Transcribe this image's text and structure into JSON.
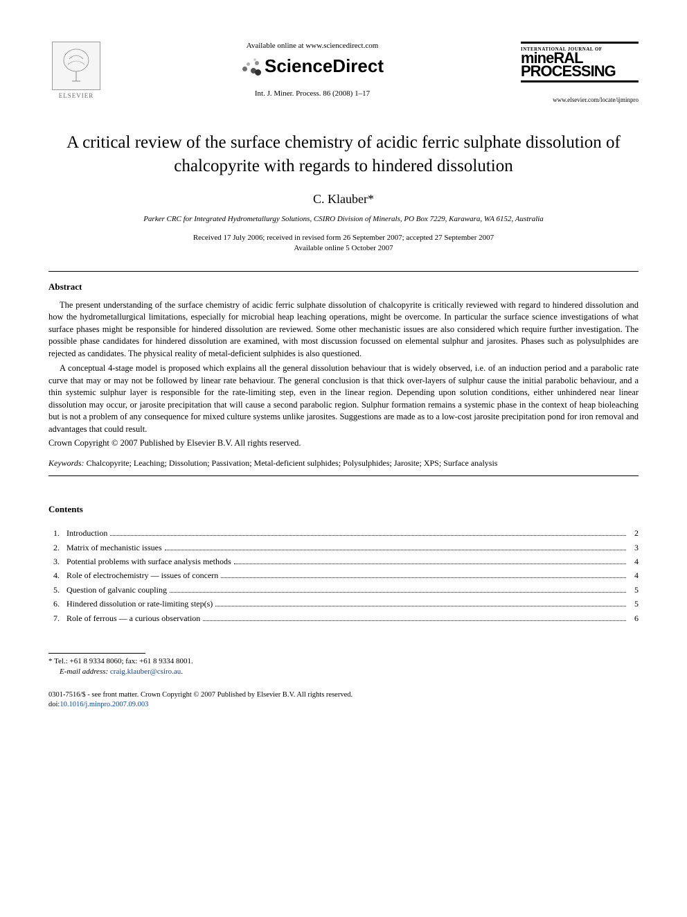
{
  "header": {
    "publisher_name": "ELSEVIER",
    "available_online": "Available online at www.sciencedirect.com",
    "sciencedirect": "ScienceDirect",
    "sd_dot_colors": [
      "#d0d0d0",
      "#b0b0b0",
      "#909090",
      "#707070",
      "#505050",
      "#303030"
    ],
    "citation": "Int. J. Miner. Process. 86 (2008) 1–17",
    "journal_intl": "INTERNATIONAL JOURNAL OF",
    "journal_name_1": "mineRAL",
    "journal_name_2": "PROCESSING",
    "journal_url": "www.elsevier.com/locate/ijminpro"
  },
  "article": {
    "title": "A critical review of the surface chemistry of acidic ferric sulphate dissolution of chalcopyrite with regards to hindered dissolution",
    "author": "C. Klauber",
    "author_marker": "*",
    "affiliation": "Parker CRC for Integrated Hydrometallurgy Solutions, CSIRO Division of Minerals, PO Box 7229, Karawara, WA 6152, Australia",
    "dates_line1": "Received 17 July 2006; received in revised form 26 September 2007; accepted 27 September 2007",
    "dates_line2": "Available online 5 October 2007"
  },
  "abstract": {
    "heading": "Abstract",
    "p1": "The present understanding of the surface chemistry of acidic ferric sulphate dissolution of chalcopyrite is critically reviewed with regard to hindered dissolution and how the hydrometallurgical limitations, especially for microbial heap leaching operations, might be overcome. In particular the surface science investigations of what surface phases might be responsible for hindered dissolution are reviewed. Some other mechanistic issues are also considered which require further investigation. The possible phase candidates for hindered dissolution are examined, with most discussion focussed on elemental sulphur and jarosites. Phases such as polysulphides are rejected as candidates. The physical reality of metal-deficient sulphides is also questioned.",
    "p2": "A conceptual 4-stage model is proposed which explains all the general dissolution behaviour that is widely observed, i.e. of an induction period and a parabolic rate curve that may or may not be followed by linear rate behaviour. The general conclusion is that thick over-layers of sulphur cause the initial parabolic behaviour, and a thin systemic sulphur layer is responsible for the rate-limiting step, even in the linear region. Depending upon solution conditions, either unhindered near linear dissolution may occur, or jarosite precipitation that will cause a second parabolic region. Sulphur formation remains a systemic phase in the context of heap bioleaching but is not a problem of any consequence for mixed culture systems unlike jarosites. Suggestions are made as to a low-cost jarosite precipitation pond for iron removal and advantages that could result.",
    "copyright": "Crown Copyright © 2007 Published by Elsevier B.V. All rights reserved."
  },
  "keywords": {
    "label": "Keywords:",
    "text": " Chalcopyrite; Leaching; Dissolution; Passivation; Metal-deficient sulphides; Polysulphides; Jarosite; XPS; Surface analysis"
  },
  "contents": {
    "heading": "Contents",
    "items": [
      {
        "num": "1.",
        "title": "Introduction",
        "page": "2"
      },
      {
        "num": "2.",
        "title": "Matrix of mechanistic issues",
        "page": "3"
      },
      {
        "num": "3.",
        "title": "Potential problems with surface analysis methods",
        "page": "4"
      },
      {
        "num": "4.",
        "title": "Role of electrochemistry — issues of concern",
        "page": "4"
      },
      {
        "num": "5.",
        "title": "Question of galvanic coupling",
        "page": "5"
      },
      {
        "num": "6.",
        "title": "Hindered dissolution or rate-limiting step(s)",
        "page": "5"
      },
      {
        "num": "7.",
        "title": "Role of ferrous — a curious observation",
        "page": "6"
      }
    ]
  },
  "footer": {
    "corr_marker": "*",
    "corr_text": " Tel.: +61 8 9334 8060; fax: +61 8 9334 8001.",
    "email_label": "E-mail address:",
    "email": "craig.klauber@csiro.au",
    "email_suffix": ".",
    "issn": "0301-7516/$ - see front matter. Crown Copyright © 2007 Published by Elsevier B.V. All rights reserved.",
    "doi_label": "doi:",
    "doi": "10.1016/j.minpro.2007.09.003"
  },
  "colors": {
    "text": "#000000",
    "link": "#0645ad",
    "background": "#ffffff"
  },
  "typography": {
    "body_font": "Georgia, Times New Roman, serif",
    "title_fontsize": 25,
    "author_fontsize": 18,
    "body_fontsize": 13,
    "abstract_fontsize": 12.5,
    "small_fontsize": 11
  }
}
